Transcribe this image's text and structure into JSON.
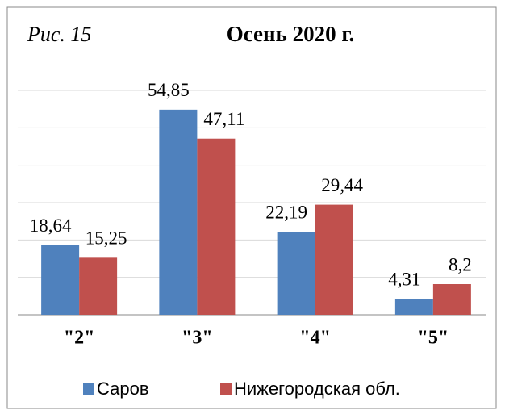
{
  "chart_data": {
    "type": "bar",
    "title": "Осень 2020 г.",
    "annotation": "Рис. 15",
    "categories": [
      "\"2\"",
      "\"3\"",
      "\"4\"",
      "\"5\""
    ],
    "series": [
      {
        "name": "Саров",
        "color": "#4f81bd",
        "values": [
          18.64,
          54.85,
          22.19,
          4.31
        ],
        "value_labels": [
          "18,64",
          "54,85",
          "22,19",
          "4,31"
        ]
      },
      {
        "name": "Нижегородская обл.",
        "color": "#c0504d",
        "values": [
          15.25,
          47.11,
          29.44,
          8.2
        ],
        "value_labels": [
          "15,25",
          "47,11",
          "29,44",
          "8,2"
        ]
      }
    ],
    "ylim": [
      0,
      60
    ],
    "yticks": [
      0,
      10,
      20,
      30,
      40,
      50,
      60
    ],
    "grid": true,
    "legend": "bottom"
  }
}
